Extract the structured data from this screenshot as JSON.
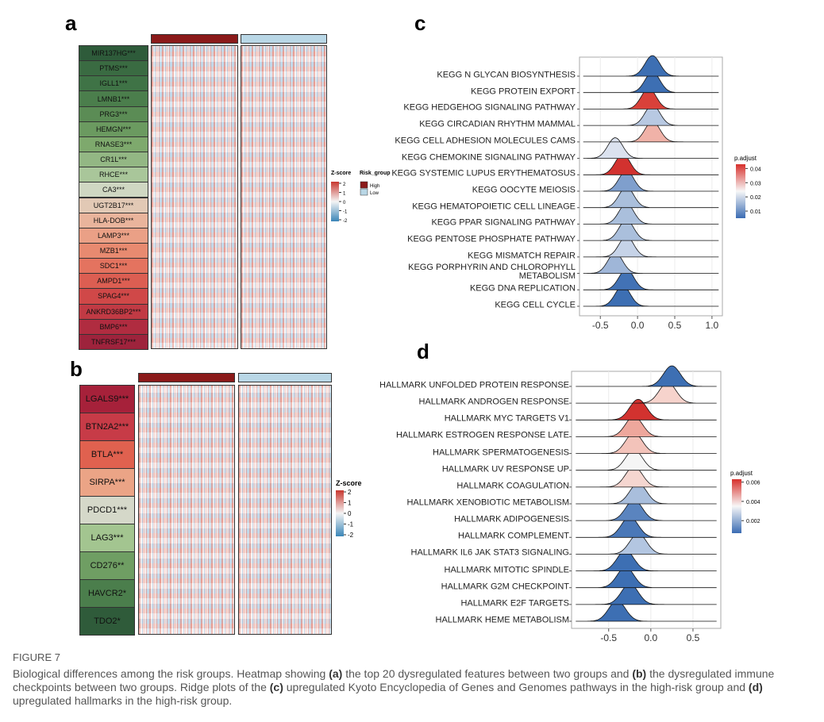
{
  "panel_labels": [
    "a",
    "b",
    "c",
    "d"
  ],
  "heatmap_a": {
    "genes": [
      "MIR137HG***",
      "PTMS***",
      "IGLL1***",
      "LMNB1***",
      "PRG3***",
      "HEMGN***",
      "RNASE3***",
      "CR1L***",
      "RHCE***",
      "CA3***",
      "UGT2B17***",
      "HLA-DOB***",
      "LAMP3***",
      "MZB1***",
      "SDC1***",
      "AMPD1***",
      "SPAG4***",
      "ANKRD36BP2***",
      "BMP6***",
      "TNFRSF17***"
    ],
    "label_colors": [
      "#2e5b3a",
      "#3a6b42",
      "#3f7346",
      "#4b7e4c",
      "#5b8c55",
      "#6b9a60",
      "#7ea96d",
      "#93b784",
      "#a9c69a",
      "#cfd7c2",
      "#e2c9b5",
      "#e9b49c",
      "#eaa086",
      "#e88a70",
      "#e4735f",
      "#dc5e52",
      "#d04848",
      "#c13a44",
      "#b02c40",
      "#9e233c"
    ],
    "zscore_title": "Z-score",
    "zscore_ticks": [
      2,
      1,
      0,
      -1,
      -2
    ],
    "group_title": "Risk_group",
    "groups": [
      "High",
      "Low"
    ],
    "group_colors": [
      "#8b1a1a",
      "#b9d7e6"
    ]
  },
  "heatmap_b": {
    "genes": [
      "LGALS9***",
      "BTN2A2***",
      "BTLA***",
      "SIRPA***",
      "PDCD1***",
      "LAG3***",
      "CD276**",
      "HAVCR2*",
      "TDO2*"
    ],
    "label_colors": [
      "#a6213a",
      "#c73b47",
      "#e0614f",
      "#eba486",
      "#d5d8c9",
      "#a3c590",
      "#6f9e63",
      "#4b7e4c",
      "#2f5b3a"
    ],
    "zscore_title": "Z-score",
    "zscore_ticks": [
      2,
      1,
      0,
      -1,
      -2
    ],
    "group_colors": [
      "#8b1a1a",
      "#b9d7e6"
    ]
  },
  "chart_data": [
    {
      "type": "ridge",
      "categories": [
        "KEGG N GLYCAN BIOSYNTHESIS",
        "KEGG PROTEIN EXPORT",
        "KEGG HEDGEHOG SIGNALING PATHWAY",
        "KEGG CIRCADIAN RHYTHM MAMMAL",
        "KEGG CELL ADHESION MOLECULES CAMS",
        "KEGG CHEMOKINE SIGNALING PATHWAY",
        "KEGG SYSTEMIC LUPUS ERYTHEMATOSUS",
        "KEGG OOCYTE MEIOSIS",
        "KEGG HEMATOPOIETIC CELL LINEAGE",
        "KEGG PPAR SIGNALING PATHWAY",
        "KEGG PENTOSE PHOSPHATE PATHWAY",
        "KEGG MISMATCH REPAIR",
        "KEGG PORPHYRIN AND CHLOROPHYLL METABOLISM",
        "KEGG DNA REPLICATION",
        "KEGG CELL CYCLE"
      ],
      "values": [
        0.2,
        0.2,
        0.15,
        0.2,
        0.2,
        -0.3,
        -0.2,
        -0.15,
        -0.15,
        -0.15,
        -0.15,
        -0.15,
        -0.3,
        -0.15,
        -0.2
      ],
      "colors": [
        "#3d6fb3",
        "#3d6fb3",
        "#d9413a",
        "#b8c9e2",
        "#f0b2a8",
        "#dbe2ef",
        "#d2322f",
        "#7f9fcd",
        "#aabfdc",
        "#aabfdc",
        "#aabfdc",
        "#c6d3e8",
        "#9fb6d8",
        "#4272b5",
        "#3d6fb3"
      ],
      "xlim": [
        -0.78,
        1.14
      ],
      "xticks": [
        -0.5,
        {
          "value": 0,
          "label": "0.0"
        },
        0.5,
        {
          "value": 1,
          "label": "1.0"
        }
      ],
      "grid": true,
      "legend": {
        "title": "p.adjust",
        "ticks": [
          0.04,
          0.03,
          0.02,
          0.01
        ],
        "color_lim": [
          0.005,
          0.043
        ]
      }
    },
    {
      "type": "ridge",
      "categories": [
        "HALLMARK UNFOLDED PROTEIN RESPONSE",
        "HALLMARK ANDROGEN RESPONSE",
        "HALLMARK MYC TARGETS V1",
        "HALLMARK ESTROGEN RESPONSE LATE",
        "HALLMARK SPERMATOGENESIS",
        "HALLMARK UV RESPONSE UP",
        "HALLMARK COAGULATION",
        "HALLMARK XENOBIOTIC METABOLISM",
        "HALLMARK ADIPOGENESIS",
        "HALLMARK COMPLEMENT",
        "HALLMARK IL6 JAK STAT3 SIGNALING",
        "HALLMARK MITOTIC SPINDLE",
        "HALLMARK G2M CHECKPOINT",
        "HALLMARK E2F TARGETS",
        "HALLMARK HEME METABOLISM"
      ],
      "values": [
        0.25,
        0.2,
        -0.15,
        -0.2,
        -0.2,
        -0.2,
        -0.2,
        -0.15,
        -0.2,
        -0.25,
        -0.15,
        -0.3,
        -0.3,
        -0.25,
        -0.4
      ],
      "colors": [
        "#3d6fb3",
        "#f6d3cc",
        "#d2322f",
        "#eea79c",
        "#f3c3ba",
        "#f5f5f5",
        "#f5d6d0",
        "#a9bedc",
        "#5a84bf",
        "#4a78b8",
        "#b3c6e1",
        "#3d6fb3",
        "#3d6fb3",
        "#3d6fb3",
        "#3d6fb3"
      ],
      "xlim": [
        -0.94,
        0.83
      ],
      "xticks": [
        -0.5,
        {
          "value": 0,
          "label": "0.0"
        },
        0.5
      ],
      "grid": true,
      "legend": {
        "title": "p.adjust",
        "ticks": [
          0.006,
          0.004,
          0.002
        ],
        "color_lim": [
          0.0007,
          0.0063
        ]
      }
    }
  ],
  "caption": {
    "label": "FIGURE 7",
    "segments": [
      {
        "text": "Biological differences among the risk groups. Heatmap showing ",
        "bold": false
      },
      {
        "text": "(a)",
        "bold": true
      },
      {
        "text": " the top 20 dysregulated features between two groups and ",
        "bold": false
      },
      {
        "text": "(b)",
        "bold": true
      },
      {
        "text": " the dysregulated immune checkpoints between two groups. Ridge plots of the ",
        "bold": false
      },
      {
        "text": "(c)",
        "bold": true
      },
      {
        "text": " upregulated Kyoto Encyclopedia of Genes and Genomes pathways in the high-risk group and ",
        "bold": false
      },
      {
        "text": "(d)",
        "bold": true
      },
      {
        "text": " upregulated hallmarks in the high-risk group.",
        "bold": false
      }
    ]
  }
}
